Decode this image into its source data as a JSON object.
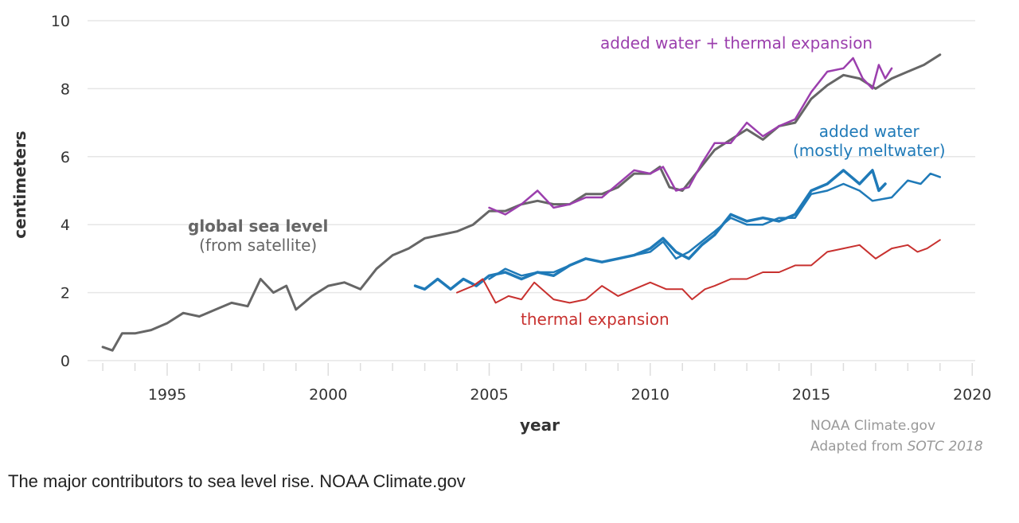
{
  "chart_data": {
    "type": "line",
    "xlabel": "year",
    "ylabel": "centimeters",
    "xlim": [
      1993,
      2020
    ],
    "ylim": [
      0,
      10
    ],
    "xticks": [
      1995,
      2000,
      2005,
      2010,
      2015,
      2020
    ],
    "yticks": [
      0,
      2,
      4,
      6,
      8,
      10
    ],
    "grid": "horizontal",
    "series": [
      {
        "name": "global sea level",
        "sublabel": "(from satellite)",
        "color": "#666666",
        "width": 3,
        "x": [
          1993.0,
          1993.3,
          1993.6,
          1994,
          1994.5,
          1995,
          1995.5,
          1996,
          1996.5,
          1997,
          1997.5,
          1997.9,
          1998.3,
          1998.7,
          1999,
          1999.5,
          2000,
          2000.5,
          2001,
          2001.5,
          2002,
          2002.5,
          2003,
          2003.5,
          2004,
          2004.5,
          2005,
          2005.5,
          2006,
          2006.5,
          2007,
          2007.5,
          2008,
          2008.5,
          2009,
          2009.5,
          2010,
          2010.3,
          2010.6,
          2011,
          2011.5,
          2012,
          2012.5,
          2013,
          2013.5,
          2014,
          2014.5,
          2015,
          2015.5,
          2016,
          2016.5,
          2017,
          2017.5,
          2018,
          2018.5,
          2019
        ],
        "y": [
          0.4,
          0.3,
          0.8,
          0.8,
          0.9,
          1.1,
          1.4,
          1.3,
          1.5,
          1.7,
          1.6,
          2.4,
          2.0,
          2.2,
          1.5,
          1.9,
          2.2,
          2.3,
          2.1,
          2.7,
          3.1,
          3.3,
          3.6,
          3.7,
          3.8,
          4.0,
          4.4,
          4.4,
          4.6,
          4.7,
          4.6,
          4.6,
          4.9,
          4.9,
          5.1,
          5.5,
          5.5,
          5.7,
          5.1,
          5.0,
          5.6,
          6.2,
          6.5,
          6.8,
          6.5,
          6.9,
          7.0,
          7.7,
          8.1,
          8.4,
          8.3,
          8.0,
          8.3,
          8.5,
          8.7,
          9.0
        ]
      },
      {
        "name": "added water + thermal expansion",
        "color": "#9b3fad",
        "width": 2.5,
        "x": [
          2005,
          2005.5,
          2006,
          2006.5,
          2007,
          2007.5,
          2008,
          2008.5,
          2009,
          2009.5,
          2010,
          2010.4,
          2010.8,
          2011.2,
          2011.6,
          2012,
          2012.5,
          2013,
          2013.5,
          2014,
          2014.5,
          2015,
          2015.5,
          2016,
          2016.3,
          2016.6,
          2016.9,
          2017.1,
          2017.3,
          2017.5
        ],
        "y": [
          4.5,
          4.3,
          4.6,
          5.0,
          4.5,
          4.6,
          4.8,
          4.8,
          5.2,
          5.6,
          5.5,
          5.7,
          5.0,
          5.1,
          5.8,
          6.4,
          6.4,
          7.0,
          6.6,
          6.9,
          7.1,
          7.9,
          8.5,
          8.6,
          8.9,
          8.3,
          8.0,
          8.7,
          8.3,
          8.6
        ]
      },
      {
        "name": "added water",
        "sublabel": "(mostly meltwater)",
        "color": "#1f7ab8",
        "width": 3.5,
        "x": [
          2002.7,
          2003,
          2003.4,
          2003.8,
          2004.2,
          2004.6,
          2005,
          2005.5,
          2006,
          2006.5,
          2007,
          2007.5,
          2008,
          2008.5,
          2009,
          2009.5,
          2010,
          2010.4,
          2010.8,
          2011.2,
          2011.6,
          2012,
          2012.5,
          2013,
          2013.5,
          2014,
          2014.5,
          2015,
          2015.5,
          2016,
          2016.5,
          2016.9,
          2017.1,
          2017.3
        ],
        "y": [
          2.2,
          2.1,
          2.4,
          2.1,
          2.4,
          2.2,
          2.5,
          2.6,
          2.4,
          2.6,
          2.5,
          2.8,
          3.0,
          2.9,
          3.0,
          3.1,
          3.3,
          3.6,
          3.2,
          3.0,
          3.4,
          3.7,
          4.3,
          4.1,
          4.2,
          4.1,
          4.3,
          5.0,
          5.2,
          5.6,
          5.2,
          5.6,
          5.0,
          5.2
        ]
      },
      {
        "color": "#1f7ab8",
        "width": 2.5,
        "x": [
          2005,
          2005.5,
          2006,
          2006.5,
          2007,
          2007.5,
          2008,
          2008.5,
          2009,
          2009.5,
          2010,
          2010.4,
          2010.8,
          2011.2,
          2011.6,
          2012,
          2012.5,
          2013,
          2013.5,
          2014,
          2014.5,
          2015,
          2015.5,
          2016,
          2016.5,
          2016.9,
          2017.5,
          2018,
          2018.4,
          2018.7,
          2019
        ],
        "y": [
          2.4,
          2.7,
          2.5,
          2.6,
          2.6,
          2.8,
          3.0,
          2.9,
          3.0,
          3.1,
          3.2,
          3.5,
          3.0,
          3.2,
          3.5,
          3.8,
          4.2,
          4.0,
          4.0,
          4.2,
          4.2,
          4.9,
          5.0,
          5.2,
          5.0,
          4.7,
          4.8,
          5.3,
          5.2,
          5.5,
          5.4
        ]
      },
      {
        "name": "thermal expansion",
        "color": "#c8312f",
        "width": 2,
        "x": [
          2004,
          2004.5,
          2004.8,
          2005.2,
          2005.6,
          2006,
          2006.4,
          2007,
          2007.5,
          2008,
          2008.5,
          2009,
          2009.5,
          2010,
          2010.5,
          2011,
          2011.3,
          2011.7,
          2012,
          2012.5,
          2013,
          2013.5,
          2014,
          2014.5,
          2015,
          2015.5,
          2016,
          2016.5,
          2017,
          2017.5,
          2018,
          2018.3,
          2018.6,
          2019
        ],
        "y": [
          2.0,
          2.2,
          2.4,
          1.7,
          1.9,
          1.8,
          2.3,
          1.8,
          1.7,
          1.8,
          2.2,
          1.9,
          2.1,
          2.3,
          2.1,
          2.1,
          1.8,
          2.1,
          2.2,
          2.4,
          2.4,
          2.6,
          2.6,
          2.8,
          2.8,
          3.2,
          3.3,
          3.4,
          3.0,
          3.3,
          3.4,
          3.2,
          3.3,
          3.55
        ]
      }
    ]
  },
  "credit": {
    "line1": "NOAA Climate.gov",
    "line2_prefix": "Adapted from ",
    "line2_italic": "SOTC 2018"
  },
  "caption": "The major contributors to sea level rise. NOAA Climate.gov"
}
